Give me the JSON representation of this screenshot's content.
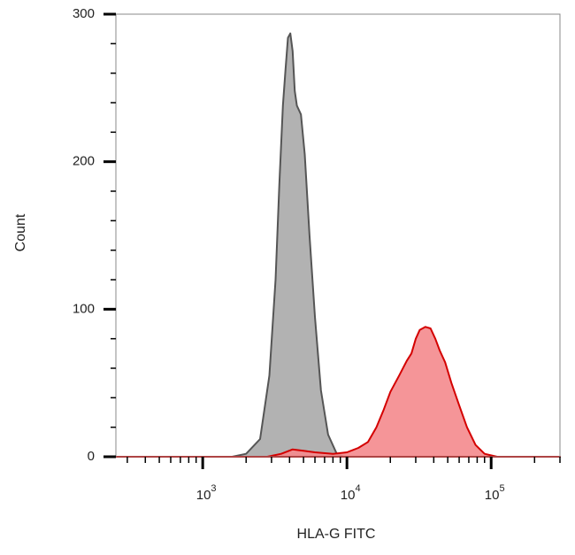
{
  "chart_data": {
    "type": "area",
    "title": "",
    "xlabel": "HLA-G FITC",
    "ylabel": "Count",
    "x_scale": "log",
    "xlim": [
      250,
      300000
    ],
    "ylim": [
      0,
      300
    ],
    "y_ticks": [
      0,
      100,
      200,
      300
    ],
    "x_ticks": [
      {
        "value": 1000,
        "base": "10",
        "exp": "3"
      },
      {
        "value": 10000,
        "base": "10",
        "exp": "4"
      },
      {
        "value": 100000,
        "base": "10",
        "exp": "5"
      }
    ],
    "grid": false,
    "legend": "none",
    "series": [
      {
        "color_fill": "#aaaaaa",
        "color_line": "#555555",
        "points": [
          [
            250,
            0
          ],
          [
            1600,
            0
          ],
          [
            2000,
            2
          ],
          [
            2500,
            12
          ],
          [
            2900,
            55
          ],
          [
            3200,
            120
          ],
          [
            3400,
            185
          ],
          [
            3600,
            238
          ],
          [
            3750,
            262
          ],
          [
            3900,
            284
          ],
          [
            4050,
            287
          ],
          [
            4200,
            275
          ],
          [
            4350,
            248
          ],
          [
            4500,
            238
          ],
          [
            4800,
            232
          ],
          [
            5100,
            205
          ],
          [
            5500,
            150
          ],
          [
            6000,
            95
          ],
          [
            6600,
            45
          ],
          [
            7400,
            15
          ],
          [
            8500,
            2
          ],
          [
            9500,
            0
          ],
          [
            300000,
            0
          ]
        ]
      },
      {
        "color_fill": "#f4898d",
        "color_line": "#d40000",
        "points": [
          [
            250,
            0
          ],
          [
            2800,
            0
          ],
          [
            3500,
            2
          ],
          [
            4200,
            5
          ],
          [
            5000,
            4
          ],
          [
            6000,
            3
          ],
          [
            8000,
            2
          ],
          [
            10000,
            3
          ],
          [
            12000,
            6
          ],
          [
            14000,
            10
          ],
          [
            16000,
            20
          ],
          [
            18000,
            32
          ],
          [
            20000,
            44
          ],
          [
            23000,
            55
          ],
          [
            26000,
            65
          ],
          [
            28000,
            70
          ],
          [
            30000,
            80
          ],
          [
            32000,
            86
          ],
          [
            35000,
            88
          ],
          [
            38000,
            87
          ],
          [
            41000,
            80
          ],
          [
            44000,
            72
          ],
          [
            48000,
            64
          ],
          [
            53000,
            50
          ],
          [
            60000,
            35
          ],
          [
            68000,
            20
          ],
          [
            78000,
            8
          ],
          [
            90000,
            2
          ],
          [
            110000,
            0
          ],
          [
            300000,
            0
          ]
        ]
      }
    ]
  }
}
